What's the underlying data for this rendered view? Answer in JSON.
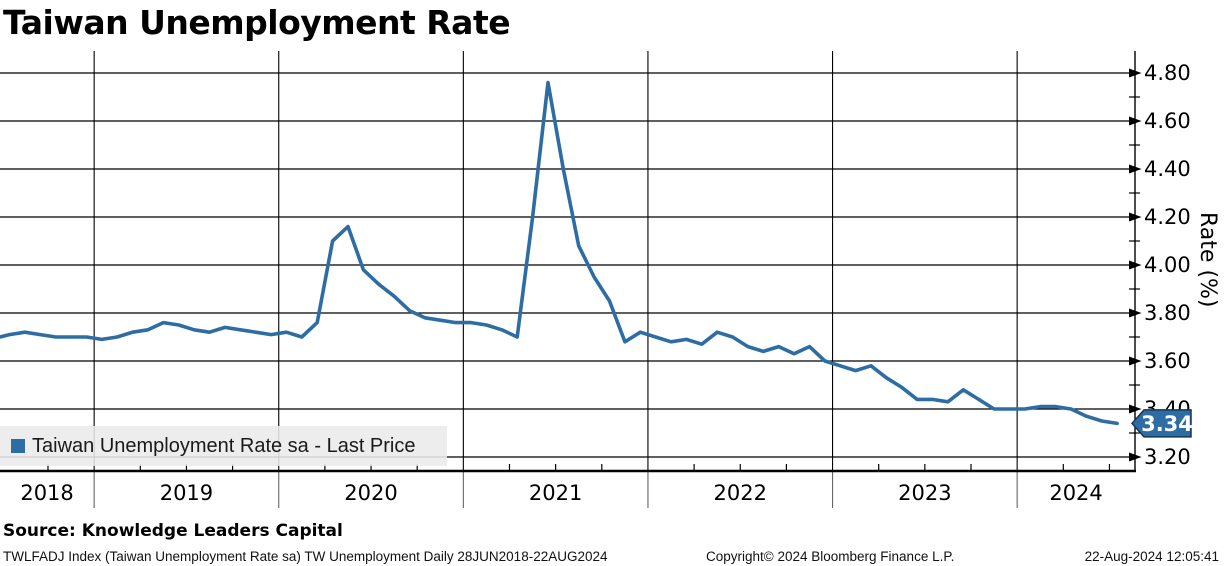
{
  "title": "Taiwan Unemployment Rate",
  "legend": {
    "label": "Taiwan Unemployment Rate sa - Last Price",
    "marker_color": "#2e6da4"
  },
  "last_price": {
    "value": "3.34",
    "fill": "#2e6da4",
    "border": "#16365c",
    "text_color": "#ffffff"
  },
  "y_axis": {
    "title": "Rate (%)",
    "tick_labels": [
      "4.80",
      "4.60",
      "4.40",
      "4.20",
      "4.00",
      "3.80",
      "3.60",
      "3.40",
      "3.20"
    ]
  },
  "x_axis": {
    "tick_labels": [
      "2018",
      "2019",
      "2020",
      "2021",
      "2022",
      "2023",
      "2024"
    ]
  },
  "source_line": "Source: Knowledge Leaders Capital",
  "footer": {
    "left": "TWLFADJ Index (Taiwan Unemployment Rate sa) TW Unemployment  Daily 28JUN2018-22AUG2024",
    "center": "Copyright© 2024 Bloomberg Finance L.P.",
    "right": "22-Aug-2024 12:05:41"
  },
  "colors": {
    "line": "#2e6da4",
    "grid": "#000000",
    "axis": "#000000",
    "tick_stub": "#666666",
    "legend_bg": "#ebebeb"
  },
  "chart_data": {
    "type": "line",
    "title": "Taiwan Unemployment Rate",
    "xlabel": "",
    "ylabel": "Rate (%)",
    "x_range": [
      "28JUN2018",
      "22AUG2024"
    ],
    "ylim": [
      3.1,
      4.9
    ],
    "y_tick_step": 0.2,
    "grid": true,
    "legend_position": "bottom-left",
    "last_value": 3.34,
    "series": [
      {
        "name": "Taiwan Unemployment Rate sa - Last Price",
        "frequency": "monthly",
        "start_month": "2018-06",
        "values": [
          3.7,
          3.71,
          3.72,
          3.71,
          3.7,
          3.7,
          3.7,
          3.69,
          3.7,
          3.72,
          3.73,
          3.76,
          3.75,
          3.73,
          3.72,
          3.74,
          3.73,
          3.72,
          3.71,
          3.72,
          3.7,
          3.76,
          4.1,
          4.16,
          3.98,
          3.92,
          3.87,
          3.81,
          3.78,
          3.77,
          3.76,
          3.76,
          3.75,
          3.73,
          3.7,
          4.2,
          4.76,
          4.4,
          4.08,
          3.95,
          3.85,
          3.68,
          3.72,
          3.7,
          3.68,
          3.69,
          3.67,
          3.72,
          3.7,
          3.66,
          3.64,
          3.66,
          3.63,
          3.66,
          3.6,
          3.58,
          3.56,
          3.58,
          3.53,
          3.49,
          3.44,
          3.44,
          3.43,
          3.48,
          3.44,
          3.4,
          3.4,
          3.4,
          3.41,
          3.41,
          3.4,
          3.37,
          3.35,
          3.34
        ]
      }
    ]
  }
}
